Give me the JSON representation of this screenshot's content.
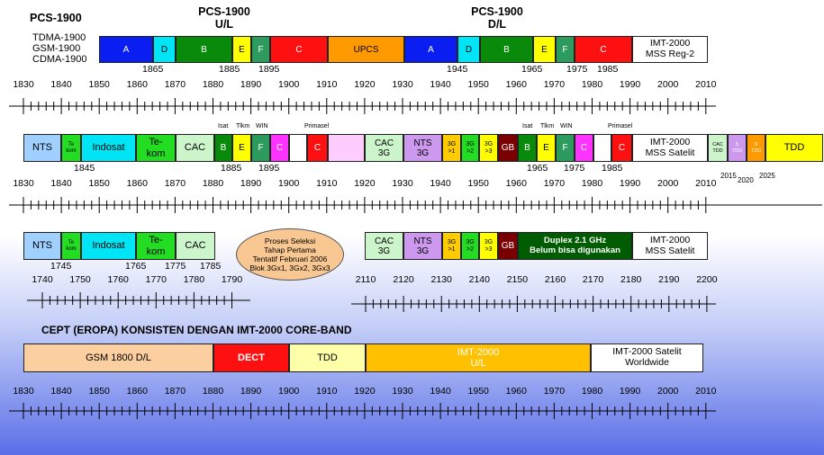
{
  "titles": {
    "pcs_main": "PCS-1900",
    "pcs_ul": "PCS-1900",
    "pcs_ul_sub": "U/L",
    "pcs_dl": "PCS-1900",
    "pcs_dl_sub": "D/L",
    "std_tdma": "TDMA-1900",
    "std_gsm": "GSM-1900",
    "std_cdma": "CDMA-1900",
    "cept": "CEPT (EROPA) KONSISTEN DENGAN  IMT-2000 CORE-BAND"
  },
  "row1": {
    "blocks": [
      "A",
      "D",
      "B",
      "E",
      "F",
      "C",
      "UPCS",
      "A",
      "D",
      "B",
      "E",
      "F",
      "C",
      "IMT-2000\nMSS Reg-2"
    ],
    "marks": [
      "1865",
      "1885",
      "1895",
      "1945",
      "1965",
      "1975",
      "1985"
    ]
  },
  "row2": {
    "top_labels": [
      "Isat",
      "Tlkm",
      "WIN",
      "Primasel",
      "Isat",
      "Tlkm",
      "WIN",
      "Primasel"
    ],
    "blocks": [
      "NTS",
      "Te\nkom",
      "Indosat",
      "Te-\nkom",
      "CAC",
      "B",
      "E",
      "F",
      "C",
      "",
      "C",
      "",
      "CAC\n3G",
      "NTS\n3G",
      "3G\n>1",
      "3G\n>2",
      "3G\n>3",
      "GB",
      "B",
      "E",
      "F",
      "C",
      "",
      "C",
      "IMT-2000\nMSS Satelit",
      "CAC\nTDD",
      "S\nTDD",
      "S\nTDD",
      "TDD"
    ],
    "marks": [
      "1845",
      "1885",
      "1895",
      "1965",
      "1975",
      "1985",
      "2015",
      "2020",
      "2025"
    ]
  },
  "row3": {
    "blocks": [
      "NTS",
      "Te\nkom",
      "Indosat",
      "Te-\nkom",
      "CAC",
      "CAC\n3G",
      "NTS\n3G",
      "3G\n>1",
      "3G\n>2",
      "3G\n>3",
      "GB",
      "Duplex 2.1 GHz\nBelum bisa digunakan",
      "IMT-2000\nMSS Satelit"
    ],
    "marks": [
      "1745",
      "1765",
      "1775",
      "1785"
    ],
    "oval": [
      "Proses Seleksi",
      "Tahap Pertama",
      "Tentatif Februari 2006",
      "Blok 3Gx1, 3Gx2, 3Gx3"
    ]
  },
  "row4": {
    "blocks": [
      "GSM 1800 D/L",
      "DECT",
      "TDD",
      "IMT-2000\nU/L",
      "IMT-2000 Satelit\nWorldwide"
    ]
  },
  "scales": {
    "s1": [
      "1830",
      "1840",
      "1850",
      "1860",
      "1870",
      "1880",
      "1890",
      "1900",
      "1910",
      "1920",
      "1930",
      "1940",
      "1950",
      "1960",
      "1970",
      "1980",
      "1990",
      "2000",
      "2010"
    ],
    "s2": [
      "1830",
      "1840",
      "1850",
      "1860",
      "1870",
      "1880",
      "1890",
      "1900",
      "1910",
      "1920",
      "1930",
      "1940",
      "1950",
      "1960",
      "1970",
      "1980",
      "1990",
      "2000",
      "2010"
    ],
    "s3a": [
      "1740",
      "1750",
      "1760",
      "1770",
      "1780",
      "1790"
    ],
    "s3b": [
      "2110",
      "2120",
      "2130",
      "2140",
      "2150",
      "2160",
      "2170",
      "2180",
      "2190",
      "2200"
    ],
    "s4": [
      "1830",
      "1840",
      "1850",
      "1860",
      "1870",
      "1880",
      "1890",
      "1900",
      "1910",
      "1920",
      "1930",
      "1940",
      "1950",
      "1960",
      "1970",
      "1980",
      "1990",
      "2000",
      "2010"
    ]
  },
  "colors": {
    "blue": "#0a1ef2",
    "cyan": "#00e5f5",
    "green": "#0a8a0a",
    "yellow": "#ffff00",
    "teal": "#2e9b5e",
    "red": "#ff1010",
    "orange": "#ff9900",
    "white": "#ffffff",
    "lightblue": "#9fd0ff",
    "bright_green": "#22dd22",
    "mint": "#ccf5cc",
    "magenta": "#ff33ff",
    "pink": "#ffccff",
    "lavender": "#cc99ee",
    "gold": "#ffcc00",
    "maroon": "#7a0000",
    "dark_green": "#005c00",
    "peach": "#fbcfa0",
    "pale_yellow": "#ffffaa",
    "amber": "#ffc000"
  }
}
